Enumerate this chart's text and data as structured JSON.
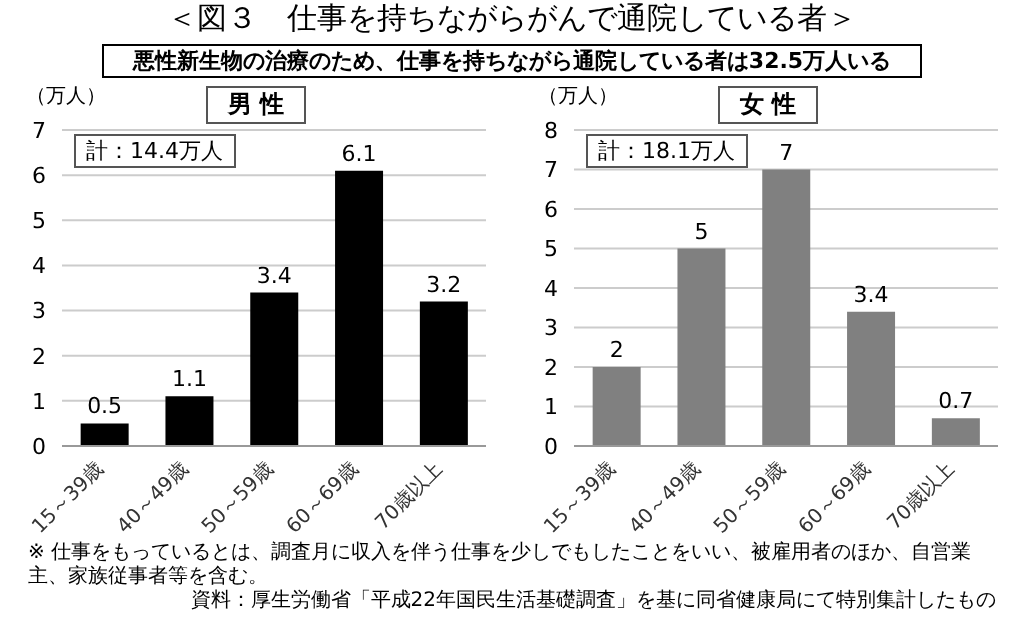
{
  "chart_data": [
    {
      "type": "other",
      "title": "＜図３　仕事を持ちながらがんで通院している者＞",
      "subtitle": "悪性新生物の治療のため、仕事を持ちながら通院している者は32.5万人いる",
      "annotations": [
        "※ 仕事をもっているとは、調査月に収入を伴う仕事を少しでもしたことをいい、被雇用者のほか、自営業主、家族従事者等を含む。",
        "資料：厚生労働省「平成22年国民生活基礎調査」を基に同省健康局にて特別集計したもの"
      ]
    },
    {
      "type": "bar",
      "title": "男 性",
      "ylabel": "（万人）",
      "annotations": [
        "計：14.4万人"
      ],
      "categories": [
        "15～39歳",
        "40～49歳",
        "50～59歳",
        "60～69歳",
        "70歳以上"
      ],
      "series": [
        {
          "color": "#000000",
          "values": [
            0.5,
            1.1,
            3.4,
            6.1,
            3.2
          ]
        }
      ],
      "ylim": [
        0,
        7
      ],
      "yticks": [
        0,
        1,
        2,
        3,
        4,
        5,
        6,
        7
      ],
      "grid": "y",
      "data_labels": true
    },
    {
      "type": "bar",
      "title": "女 性",
      "ylabel": "（万人）",
      "annotations": [
        "計：18.1万人"
      ],
      "categories": [
        "15～39歳",
        "40～49歳",
        "50～59歳",
        "60～69歳",
        "70歳以上"
      ],
      "series": [
        {
          "color": "#808080",
          "values": [
            2,
            5,
            7,
            3.4,
            0.7
          ]
        }
      ],
      "ylim": [
        0,
        8
      ],
      "yticks": [
        0,
        1,
        2,
        3,
        4,
        5,
        6,
        7,
        8
      ],
      "grid": "y",
      "data_labels": true
    }
  ]
}
